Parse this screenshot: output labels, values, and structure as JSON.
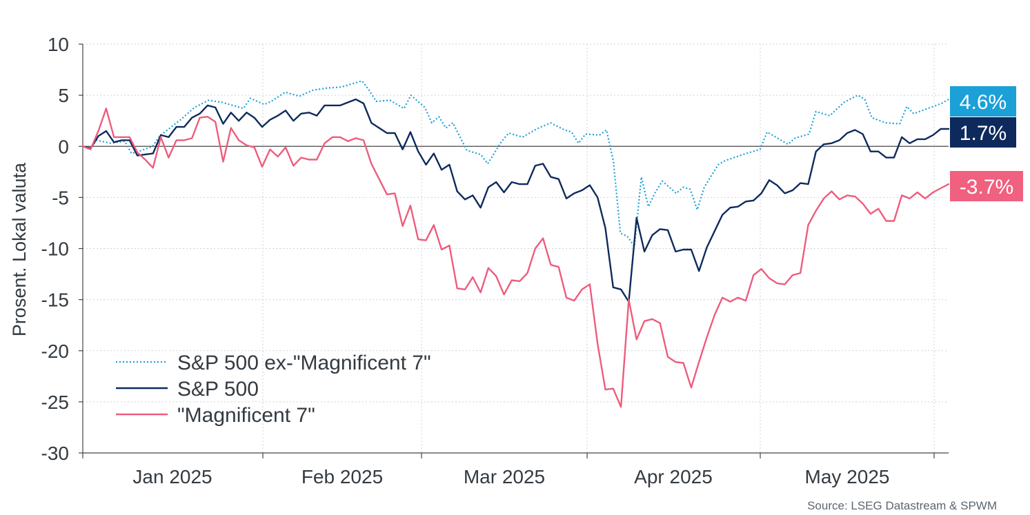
{
  "chart_data": {
    "type": "line",
    "title": "",
    "ylabel": "Prosent. Lokal valuta",
    "xlabel": "",
    "ylim": [
      -30,
      10
    ],
    "yticks": [
      10,
      5,
      0,
      -5,
      -10,
      -15,
      -20,
      -25,
      -30
    ],
    "xtick_labels": [
      "Jan 2025",
      "Feb 2025",
      "Mar 2025",
      "Apr 2025",
      "May 2025"
    ],
    "n_points": 125,
    "grid": "dotted",
    "legend_position": "bottom-left",
    "series": [
      {
        "name": "S&P 500 ex-\"Magnificent 7\"",
        "style": "dotted",
        "color": "#1ba0d8",
        "end_label": "4.6%",
        "label_color": "#1ba0d8",
        "anchors": [
          [
            0,
            0
          ],
          [
            1,
            -0.2
          ],
          [
            2,
            0.6
          ],
          [
            4,
            0.3
          ],
          [
            6,
            0.5
          ],
          [
            7,
            -0.7
          ],
          [
            8,
            -0.5
          ],
          [
            10,
            0
          ],
          [
            11,
            1
          ],
          [
            14,
            2.6
          ],
          [
            16,
            3.8
          ],
          [
            18,
            4.5
          ],
          [
            20,
            4.3
          ],
          [
            22,
            3.9
          ],
          [
            23,
            3.7
          ],
          [
            24,
            4.7
          ],
          [
            26,
            4.1
          ],
          [
            27,
            4.4
          ],
          [
            29,
            5.3
          ],
          [
            31,
            4.9
          ],
          [
            33,
            5.5
          ],
          [
            35,
            5.7
          ],
          [
            37,
            5.8
          ],
          [
            39,
            6.2
          ],
          [
            40,
            6.4
          ],
          [
            41,
            5.5
          ],
          [
            42,
            4.4
          ],
          [
            44,
            4.5
          ],
          [
            46,
            3.7
          ],
          [
            47,
            5.0
          ],
          [
            49,
            3.8
          ],
          [
            50,
            2.3
          ],
          [
            51,
            2.9
          ],
          [
            52,
            1.8
          ],
          [
            53,
            2.3
          ],
          [
            55,
            -0.4
          ],
          [
            57,
            -0.8
          ],
          [
            58,
            -1.7
          ],
          [
            60,
            0.5
          ],
          [
            61,
            1.3
          ],
          [
            63,
            0.9
          ],
          [
            65,
            1.7
          ],
          [
            67,
            2.3
          ],
          [
            69,
            1.6
          ],
          [
            70,
            1.4
          ],
          [
            71,
            0.3
          ],
          [
            72,
            1.2
          ],
          [
            74,
            1.1
          ],
          [
            75,
            1.6
          ],
          [
            76,
            -1.5
          ],
          [
            77,
            -8.5
          ],
          [
            78,
            -8.8
          ],
          [
            79,
            -9.8
          ],
          [
            80,
            -3.0
          ],
          [
            81,
            -5.9
          ],
          [
            82,
            -4.5
          ],
          [
            83,
            -3.4
          ],
          [
            85,
            -4.6
          ],
          [
            86,
            -4.0
          ],
          [
            87,
            -4.2
          ],
          [
            88,
            -6.2
          ],
          [
            89,
            -4.0
          ],
          [
            91,
            -1.8
          ],
          [
            92,
            -1.4
          ],
          [
            95,
            -0.7
          ],
          [
            97,
            -0.3
          ],
          [
            98,
            1.4
          ],
          [
            100,
            0.6
          ],
          [
            101,
            0.2
          ],
          [
            102,
            0.8
          ],
          [
            104,
            1.2
          ],
          [
            105,
            3.4
          ],
          [
            107,
            3.0
          ],
          [
            109,
            4.3
          ],
          [
            111,
            5.0
          ],
          [
            112,
            4.6
          ],
          [
            113,
            2.8
          ],
          [
            115,
            2.3
          ],
          [
            117,
            2.2
          ],
          [
            118,
            3.9
          ],
          [
            119,
            3.2
          ],
          [
            121,
            3.7
          ],
          [
            123,
            4.2
          ],
          [
            124,
            4.6
          ]
        ]
      },
      {
        "name": "S&P 500",
        "style": "solid",
        "color": "#0e2a5c",
        "end_label": "1.7%",
        "label_color": "#0e2a5c",
        "anchors": [
          [
            0,
            0
          ],
          [
            1,
            -0.2
          ],
          [
            2,
            1.0
          ],
          [
            3,
            1.5
          ],
          [
            4,
            0.4
          ],
          [
            5,
            0.6
          ],
          [
            6,
            0.6
          ],
          [
            7,
            -0.9
          ],
          [
            8,
            -0.8
          ],
          [
            9,
            -0.7
          ],
          [
            10,
            1.1
          ],
          [
            11,
            0.9
          ],
          [
            12,
            1.9
          ],
          [
            13,
            1.9
          ],
          [
            14,
            2.8
          ],
          [
            15,
            3.2
          ],
          [
            16,
            4.0
          ],
          [
            17,
            3.8
          ],
          [
            18,
            2.2
          ],
          [
            19,
            3.3
          ],
          [
            20,
            2.5
          ],
          [
            21,
            3.3
          ],
          [
            22,
            2.8
          ],
          [
            23,
            1.9
          ],
          [
            24,
            2.6
          ],
          [
            25,
            3.0
          ],
          [
            26,
            3.5
          ],
          [
            27,
            2.5
          ],
          [
            28,
            3.2
          ],
          [
            29,
            3.3
          ],
          [
            30,
            3.0
          ],
          [
            31,
            4.0
          ],
          [
            33,
            4.0
          ],
          [
            35,
            4.6
          ],
          [
            36,
            4.2
          ],
          [
            37,
            2.3
          ],
          [
            38,
            1.8
          ],
          [
            39,
            1.3
          ],
          [
            40,
            1.3
          ],
          [
            41,
            -0.3
          ],
          [
            42,
            1.4
          ],
          [
            43,
            -0.5
          ],
          [
            44,
            -1.8
          ],
          [
            45,
            -0.7
          ],
          [
            46,
            -2.3
          ],
          [
            47,
            -1.8
          ],
          [
            48,
            -4.4
          ],
          [
            49,
            -5.2
          ],
          [
            50,
            -4.8
          ],
          [
            51,
            -6.0
          ],
          [
            52,
            -4.0
          ],
          [
            53,
            -3.5
          ],
          [
            54,
            -4.5
          ],
          [
            55,
            -3.5
          ],
          [
            56,
            -3.7
          ],
          [
            57,
            -3.7
          ],
          [
            58,
            -1.9
          ],
          [
            59,
            -1.7
          ],
          [
            60,
            -3.0
          ],
          [
            61,
            -3.2
          ],
          [
            62,
            -5.1
          ],
          [
            63,
            -4.6
          ],
          [
            64,
            -4.3
          ],
          [
            65,
            -3.8
          ],
          [
            66,
            -5.0
          ],
          [
            67,
            -8.0
          ],
          [
            68,
            -13.8
          ],
          [
            69,
            -14.0
          ],
          [
            70,
            -15.2
          ],
          [
            71,
            -7.0
          ],
          [
            72,
            -10.3
          ],
          [
            73,
            -8.7
          ],
          [
            74,
            -8.1
          ],
          [
            75,
            -8.2
          ],
          [
            76,
            -10.3
          ],
          [
            77,
            -10.1
          ],
          [
            78,
            -10.1
          ],
          [
            79,
            -12.2
          ],
          [
            80,
            -9.9
          ],
          [
            81,
            -8.3
          ],
          [
            82,
            -6.7
          ],
          [
            83,
            -6.0
          ],
          [
            84,
            -5.9
          ],
          [
            85,
            -5.4
          ],
          [
            86,
            -5.3
          ],
          [
            87,
            -4.6
          ],
          [
            88,
            -3.3
          ],
          [
            89,
            -3.8
          ],
          [
            90,
            -4.6
          ],
          [
            91,
            -4.3
          ],
          [
            92,
            -3.6
          ],
          [
            93,
            -3.7
          ],
          [
            94,
            -0.5
          ],
          [
            95,
            0.2
          ],
          [
            96,
            0.3
          ],
          [
            97,
            0.6
          ],
          [
            98,
            1.3
          ],
          [
            99,
            1.6
          ],
          [
            100,
            1.2
          ],
          [
            101,
            -0.5
          ],
          [
            102,
            -0.5
          ],
          [
            103,
            -1.1
          ],
          [
            104,
            -1.1
          ],
          [
            105,
            0.9
          ],
          [
            106,
            0.3
          ],
          [
            107,
            0.7
          ],
          [
            108,
            0.7
          ],
          [
            109,
            1.1
          ],
          [
            110,
            1.7
          ],
          [
            111,
            1.7
          ]
        ]
      },
      {
        "name": "\"Magnificent 7\"",
        "style": "solid",
        "color": "#ee5c7c",
        "end_label": "-3.7%",
        "label_color": "#f0607f",
        "anchors": [
          [
            0,
            0
          ],
          [
            1,
            -0.3
          ],
          [
            2,
            1.5
          ],
          [
            3,
            3.7
          ],
          [
            4,
            0.9
          ],
          [
            5,
            0.9
          ],
          [
            6,
            0.9
          ],
          [
            7,
            -0.6
          ],
          [
            8,
            -1.3
          ],
          [
            9,
            -2.1
          ],
          [
            10,
            0.9
          ],
          [
            11,
            -1.1
          ],
          [
            12,
            0.6
          ],
          [
            13,
            0.6
          ],
          [
            14,
            0.8
          ],
          [
            15,
            2.8
          ],
          [
            16,
            2.9
          ],
          [
            17,
            2.4
          ],
          [
            18,
            -1.5
          ],
          [
            19,
            1.8
          ],
          [
            20,
            0.6
          ],
          [
            21,
            0.1
          ],
          [
            22,
            -0.1
          ],
          [
            23,
            -2.0
          ],
          [
            24,
            -0.3
          ],
          [
            25,
            -1.0
          ],
          [
            26,
            -0.1
          ],
          [
            27,
            -1.9
          ],
          [
            28,
            -1.1
          ],
          [
            29,
            -1.3
          ],
          [
            30,
            -1.3
          ],
          [
            31,
            0.3
          ],
          [
            32,
            0.9
          ],
          [
            33,
            0.9
          ],
          [
            34,
            0.5
          ],
          [
            35,
            0.8
          ],
          [
            36,
            0.6
          ],
          [
            37,
            -1.7
          ],
          [
            38,
            -3.2
          ],
          [
            39,
            -4.7
          ],
          [
            40,
            -4.6
          ],
          [
            41,
            -7.8
          ],
          [
            42,
            -5.8
          ],
          [
            43,
            -9.1
          ],
          [
            44,
            -9.2
          ],
          [
            45,
            -7.7
          ],
          [
            46,
            -10.1
          ],
          [
            47,
            -9.7
          ],
          [
            48,
            -13.9
          ],
          [
            49,
            -14.0
          ],
          [
            50,
            -12.8
          ],
          [
            51,
            -14.3
          ],
          [
            52,
            -11.9
          ],
          [
            53,
            -12.7
          ],
          [
            54,
            -14.5
          ],
          [
            55,
            -13.1
          ],
          [
            56,
            -13.2
          ],
          [
            57,
            -12.4
          ],
          [
            58,
            -10.0
          ],
          [
            59,
            -9.0
          ],
          [
            60,
            -11.6
          ],
          [
            61,
            -11.8
          ],
          [
            62,
            -14.8
          ],
          [
            63,
            -15.1
          ],
          [
            64,
            -14.0
          ],
          [
            65,
            -13.5
          ],
          [
            66,
            -19.3
          ],
          [
            67,
            -23.8
          ],
          [
            68,
            -23.7
          ],
          [
            69,
            -25.5
          ],
          [
            70,
            -15.0
          ],
          [
            71,
            -18.9
          ],
          [
            72,
            -17.1
          ],
          [
            73,
            -16.9
          ],
          [
            74,
            -17.3
          ],
          [
            75,
            -20.6
          ],
          [
            76,
            -21.1
          ],
          [
            77,
            -21.2
          ],
          [
            78,
            -23.6
          ],
          [
            79,
            -21.1
          ],
          [
            80,
            -18.7
          ],
          [
            81,
            -16.5
          ],
          [
            82,
            -14.8
          ],
          [
            83,
            -15.2
          ],
          [
            84,
            -14.8
          ],
          [
            85,
            -15.1
          ],
          [
            86,
            -12.6
          ],
          [
            87,
            -12.0
          ],
          [
            88,
            -12.9
          ],
          [
            89,
            -13.4
          ],
          [
            90,
            -13.5
          ],
          [
            91,
            -12.6
          ],
          [
            92,
            -12.4
          ],
          [
            93,
            -7.7
          ],
          [
            94,
            -6.3
          ],
          [
            95,
            -5.1
          ],
          [
            96,
            -4.4
          ],
          [
            97,
            -5.2
          ],
          [
            98,
            -4.8
          ],
          [
            99,
            -4.9
          ],
          [
            100,
            -5.6
          ],
          [
            101,
            -6.6
          ],
          [
            102,
            -6.1
          ],
          [
            103,
            -7.3
          ],
          [
            104,
            -7.3
          ],
          [
            105,
            -4.8
          ],
          [
            106,
            -5.1
          ],
          [
            107,
            -4.5
          ],
          [
            108,
            -5.1
          ],
          [
            109,
            -4.5
          ],
          [
            110,
            -4.1
          ],
          [
            111,
            -3.7
          ]
        ]
      }
    ]
  },
  "source": "Source: LSEG Datastream & SPWM"
}
